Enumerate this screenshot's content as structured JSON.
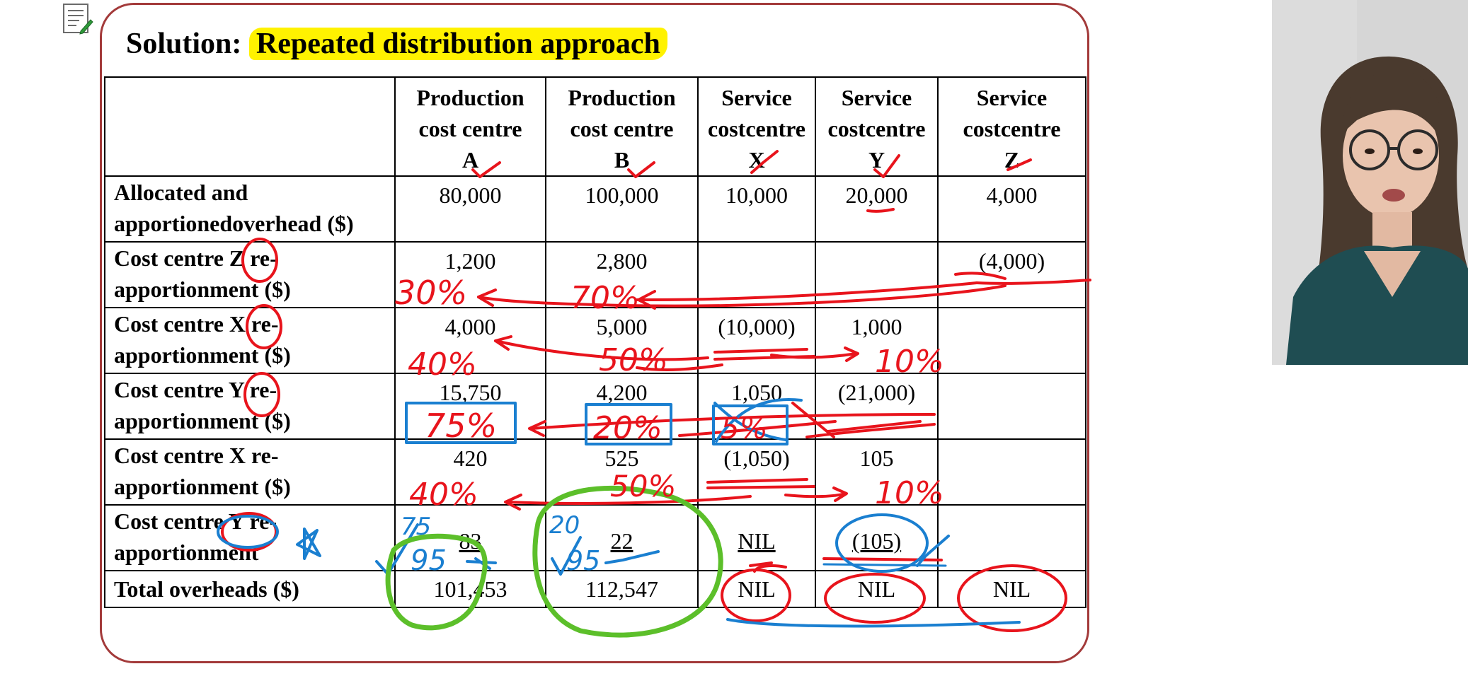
{
  "slide": {
    "title_prefix": "Solution:",
    "title_highlight": "Repeated distribution approach"
  },
  "table": {
    "headers": [
      {
        "line1": "",
        "line2": "",
        "line3": ""
      },
      {
        "line1": "Production",
        "line2": "cost centre",
        "line3": "A"
      },
      {
        "line1": "Production",
        "line2": "cost centre",
        "line3": "B"
      },
      {
        "line1": "Service",
        "line2": "costcentre",
        "line3": "X"
      },
      {
        "line1": "Service",
        "line2": "costcentre",
        "line3": "Y"
      },
      {
        "line1": "Service",
        "line2": "costcentre",
        "line3": "Z"
      }
    ],
    "rows": [
      {
        "label1": "Allocated and",
        "label2": "apportionedoverhead ($)",
        "a": "80,000",
        "b": "100,000",
        "x": "10,000",
        "y": "20,000",
        "z": "4,000"
      },
      {
        "label1": "Cost centre Z re-",
        "label2": "apportionment ($)",
        "a": "1,200",
        "b": "2,800",
        "x": "",
        "y": "",
        "z": "(4,000)"
      },
      {
        "label1": "Cost centre X re-",
        "label2": "apportionment ($)",
        "a": "4,000",
        "b": "5,000",
        "x": "(10,000)",
        "y": "1,000",
        "z": ""
      },
      {
        "label1": "Cost centre Y re-",
        "label2": "apportionment ($)",
        "a": "15,750",
        "b": "4,200",
        "x": "1,050",
        "y": "(21,000)",
        "z": ""
      },
      {
        "label1": "Cost centre X  re-",
        "label2": "apportionment ($)",
        "a": "420",
        "b": "525",
        "x": "(1,050)",
        "y": "105",
        "z": ""
      },
      {
        "label1": "Cost centre Y re-",
        "label2": "apportionment",
        "a": "83",
        "b": "22",
        "x": "NIL",
        "y": "(105)",
        "z": ""
      },
      {
        "label1": "Total overheads ($)",
        "label2": "",
        "a": "101,453",
        "b": "112,547",
        "x": "NIL",
        "y": "NIL",
        "z": "NIL"
      }
    ]
  },
  "annotations": {
    "pct_z_a": "30%",
    "pct_z_b": "70%",
    "pct_x_a": "40%",
    "pct_x_b": "50%",
    "pct_x_y": "10%",
    "pct_y_a": "75%",
    "pct_y_b": "20%",
    "pct_y_x": "5%",
    "pct_x2_a": "40%",
    "pct_x2_b": "50%",
    "pct_x2_y": "10%",
    "pct_y2_a_top": "75",
    "pct_y2_a_bottom": "95",
    "pct_y2_b_top": "20",
    "pct_y2_b_bottom": "95"
  },
  "colors": {
    "frame": "#a33a3a",
    "highlight": "#fff200",
    "ink_red": "#e8141c",
    "ink_blue": "#1a7fd0",
    "ink_green": "#5cbf2a"
  },
  "icons": {
    "notes": "notes-icon",
    "presenter": "presenter-video"
  }
}
